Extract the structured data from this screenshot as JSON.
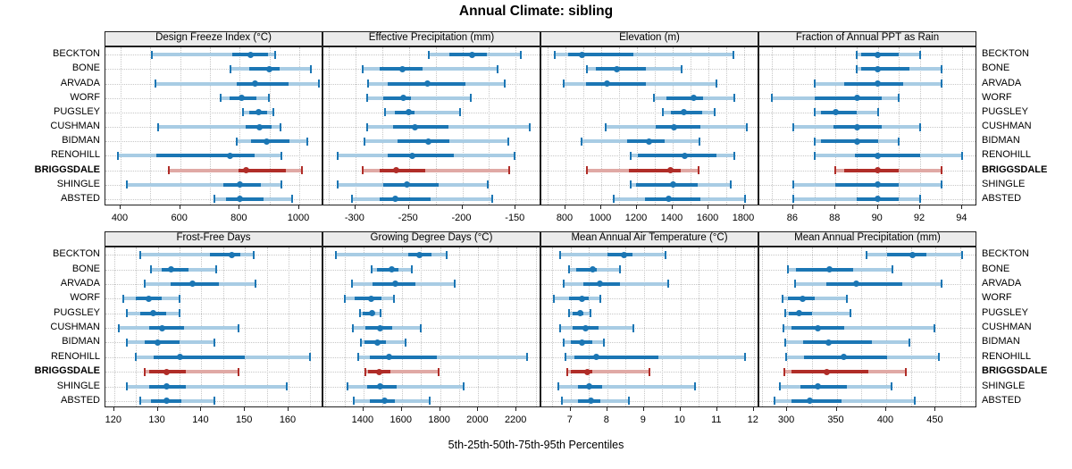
{
  "title": "Annual Climate: sibling",
  "caption": "5th-25th-50th-75th-95th Percentiles",
  "colors": {
    "series": "#1b76b4",
    "series_light": "#a8cce4",
    "highlight": "#b02d28",
    "highlight_light": "#e0a9a5",
    "header_bg": "#ebebeb",
    "panel_border": "#1f1f1f",
    "grid": "#c7c7c7"
  },
  "chart_data": {
    "type": "dot-plot-percentile-trellis",
    "percentile_labels": [
      "5th",
      "25th",
      "50th",
      "75th",
      "95th"
    ],
    "stations": [
      "BECKTON",
      "BONE",
      "ARVADA",
      "WORF",
      "PUGSLEY",
      "CUSHMAN",
      "BIDMAN",
      "RENOHILL",
      "BRIGGSDALE",
      "SHINGLE",
      "ABSTED"
    ],
    "highlight_station": "BRIGGSDALE",
    "grid": "dotted",
    "panels": [
      {
        "title": "Design Freeze Index (°C)",
        "xlim": [
          349,
          1081
        ],
        "tick_labels": [
          400,
          600,
          800,
          1000
        ],
        "grid_step": 100,
        "series": [
          [
            505,
            775,
            835,
            895,
            920
          ],
          [
            770,
            833,
            900,
            935,
            1040
          ],
          [
            517,
            790,
            850,
            965,
            1067
          ],
          [
            736,
            766,
            806,
            856,
            899
          ],
          [
            811,
            831,
            863,
            891,
            914
          ],
          [
            526,
            819,
            866,
            906,
            936
          ],
          [
            791,
            839,
            891,
            966,
            1026
          ],
          [
            391,
            521,
            766,
            851,
            941
          ],
          [
            561,
            796,
            821,
            956,
            1008
          ],
          [
            421,
            745,
            801,
            871,
            939
          ],
          [
            716,
            755,
            801,
            880,
            976
          ]
        ]
      },
      {
        "title": "Effective Precipitation (mm)",
        "xlim": [
          -330,
          -126
        ],
        "tick_labels": [
          -300,
          -250,
          -200,
          -150
        ],
        "grid_step": 25,
        "series": [
          [
            -231,
            -212,
            -191,
            -177,
            -145
          ],
          [
            -293,
            -277,
            -256,
            -237,
            -167
          ],
          [
            -288,
            -270,
            -233,
            -197,
            -160
          ],
          [
            -289,
            -274,
            -255,
            -248,
            -192
          ],
          [
            -272,
            -263,
            -250,
            -245,
            -202
          ],
          [
            -289,
            -265,
            -244,
            -213,
            -137
          ],
          [
            -292,
            -261,
            -232,
            -212,
            -157
          ],
          [
            -317,
            -270,
            -247,
            -208,
            -151
          ],
          [
            -293,
            -277,
            -262,
            -235,
            -156
          ],
          [
            -317,
            -274,
            -252,
            -222,
            -176
          ],
          [
            -303,
            -277,
            -263,
            -230,
            -172
          ]
        ]
      },
      {
        "title": "Elevation (m)",
        "xlim": [
          665,
          1885
        ],
        "tick_labels": [
          800,
          1000,
          1200,
          1400,
          1600,
          1800
        ],
        "grid_step": 100,
        "series": [
          [
            738,
            813,
            892,
            1180,
            1738
          ],
          [
            918,
            968,
            1085,
            1252,
            1452
          ],
          [
            788,
            913,
            1030,
            1252,
            1647
          ],
          [
            1293,
            1363,
            1518,
            1572,
            1747
          ],
          [
            1347,
            1388,
            1460,
            1563,
            1635
          ],
          [
            1027,
            1305,
            1408,
            1555,
            1813
          ],
          [
            888,
            1143,
            1268,
            1355,
            1552
          ],
          [
            1163,
            1205,
            1468,
            1647,
            1747
          ],
          [
            922,
            1155,
            1385,
            1447,
            1547
          ],
          [
            1163,
            1197,
            1402,
            1538,
            1727
          ],
          [
            1072,
            1247,
            1375,
            1555,
            1805
          ]
        ]
      },
      {
        "title": "Fraction of Annual PPT as Rain",
        "xlim": [
          84.4,
          94.7
        ],
        "tick_labels": [
          86,
          88,
          90,
          92,
          94
        ],
        "grid_step": 1,
        "series": [
          [
            89,
            89.2,
            90,
            91,
            92
          ],
          [
            89,
            89.2,
            90,
            91.5,
            93
          ],
          [
            87,
            88.4,
            90,
            91.2,
            93
          ],
          [
            85,
            87,
            89,
            90.2,
            91
          ],
          [
            87,
            87.3,
            88,
            89,
            90
          ],
          [
            86,
            87.9,
            89,
            90.2,
            92
          ],
          [
            87,
            87.3,
            89,
            90,
            91
          ],
          [
            87,
            88.9,
            90,
            92,
            94
          ],
          [
            88,
            88.4,
            90,
            91,
            93
          ],
          [
            86,
            88,
            90,
            91,
            93
          ],
          [
            86,
            89,
            90,
            91,
            92
          ]
        ]
      },
      {
        "title": "Frost-Free Days",
        "xlim": [
          118,
          168
        ],
        "tick_labels": [
          120,
          130,
          140,
          150,
          160
        ],
        "grid_step": 5,
        "series": [
          [
            126,
            142,
            147,
            149,
            152
          ],
          [
            128.5,
            131,
            133,
            137,
            143.5
          ],
          [
            127,
            133,
            138,
            144,
            152.5
          ],
          [
            122,
            125,
            128,
            131,
            135
          ],
          [
            123,
            126,
            129,
            132,
            135
          ],
          [
            121,
            128,
            131,
            136,
            148.5
          ],
          [
            123,
            127,
            130,
            135,
            143
          ],
          [
            125,
            129,
            135,
            150,
            165
          ],
          [
            127,
            128,
            132,
            136.5,
            148.5
          ],
          [
            123,
            128,
            132,
            136.5,
            159.5
          ],
          [
            126,
            128.5,
            132,
            135.5,
            143
          ]
        ]
      },
      {
        "title": "Growing Degree Days (°C)",
        "xlim": [
          1190,
          2330
        ],
        "tick_labels": [
          1400,
          1600,
          1800,
          2000,
          2200
        ],
        "grid_step": 100,
        "series": [
          [
            1255,
            1633,
            1691,
            1755,
            1836
          ],
          [
            1440,
            1470,
            1545,
            1584,
            1652
          ],
          [
            1338,
            1447,
            1568,
            1672,
            1875
          ],
          [
            1302,
            1353,
            1442,
            1493,
            1559
          ],
          [
            1380,
            1397,
            1444,
            1455,
            1490
          ],
          [
            1345,
            1408,
            1485,
            1548,
            1700
          ],
          [
            1384,
            1403,
            1473,
            1517,
            1618
          ],
          [
            1372,
            1434,
            1532,
            1784,
            2256
          ],
          [
            1411,
            1423,
            1480,
            1540,
            1792
          ],
          [
            1318,
            1420,
            1485,
            1574,
            1924
          ],
          [
            1350,
            1434,
            1509,
            1566,
            1747
          ]
        ]
      },
      {
        "title": "Mean Annual Air Temperature (°C)",
        "xlim": [
          6.2,
          12.15
        ],
        "tick_labels": [
          7,
          8,
          9,
          10,
          11,
          12
        ],
        "grid_step": 0.5,
        "series": [
          [
            6.7,
            8.0,
            8.45,
            8.7,
            9.6
          ],
          [
            6.95,
            7.15,
            7.6,
            7.7,
            8.35
          ],
          [
            6.8,
            7.35,
            7.8,
            8.35,
            9.65
          ],
          [
            6.55,
            6.95,
            7.3,
            7.5,
            7.8
          ],
          [
            6.95,
            7.05,
            7.25,
            7.35,
            7.55
          ],
          [
            6.7,
            7.05,
            7.4,
            7.75,
            8.7
          ],
          [
            6.8,
            7.0,
            7.3,
            7.6,
            7.9
          ],
          [
            6.85,
            7.1,
            7.7,
            9.4,
            11.75
          ],
          [
            6.9,
            7.0,
            7.45,
            7.6,
            9.15
          ],
          [
            6.65,
            7.2,
            7.5,
            7.85,
            10.4
          ],
          [
            6.75,
            7.2,
            7.55,
            7.8,
            8.6
          ]
        ]
      },
      {
        "title": "Mean Annual Precipitation (mm)",
        "xlim": [
          272,
          492
        ],
        "tick_labels": [
          300,
          350,
          400,
          450
        ],
        "grid_step": 25,
        "series": [
          [
            380,
            401,
            427,
            441,
            477
          ],
          [
            301,
            309,
            343,
            367,
            406
          ],
          [
            308,
            340,
            370,
            416,
            456
          ],
          [
            295,
            301,
            316,
            328,
            360
          ],
          [
            298,
            302,
            312,
            325,
            364
          ],
          [
            296,
            304,
            331,
            358,
            449
          ],
          [
            298,
            316,
            342,
            386,
            423
          ],
          [
            299,
            317,
            357,
            401,
            453
          ],
          [
            297,
            304,
            340,
            382,
            420
          ],
          [
            293,
            313,
            331,
            360,
            405
          ],
          [
            287,
            304,
            323,
            355,
            429
          ]
        ]
      }
    ]
  }
}
